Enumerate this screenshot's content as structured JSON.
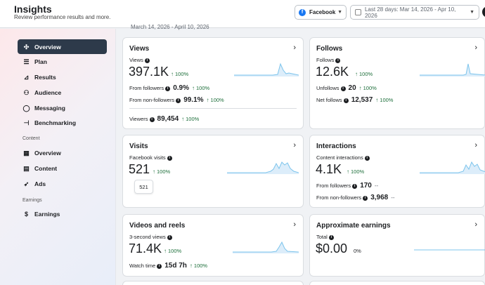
{
  "header": {
    "title": "Insights",
    "subtitle": "Review performance results and more.",
    "platform": "Facebook",
    "date_range": "Last 28 days: Mar 14, 2026 - Apr 10, 2026"
  },
  "partial_date": "March 14, 2026 - April 10, 2026",
  "sidebar": {
    "items": [
      {
        "label": "Overview",
        "icon": "overview-icon",
        "active": true
      },
      {
        "label": "Plan",
        "icon": "list-icon"
      },
      {
        "label": "Results",
        "icon": "results-icon"
      },
      {
        "label": "Audience",
        "icon": "audience-icon"
      },
      {
        "label": "Messaging",
        "icon": "messaging-icon"
      },
      {
        "label": "Benchmarking",
        "icon": "benchmarking-icon"
      }
    ],
    "content_label": "Content",
    "content_items": [
      {
        "label": "Overview",
        "icon": "grid-icon"
      },
      {
        "label": "Content",
        "icon": "table-icon"
      },
      {
        "label": "Ads",
        "icon": "rocket-icon"
      }
    ],
    "earnings_label": "Earnings",
    "earnings_items": [
      {
        "label": "Earnings",
        "icon": "dollar-icon"
      }
    ]
  },
  "cards": {
    "views": {
      "title": "Views",
      "metric_label": "Views",
      "value": "397.1K",
      "change": "100%",
      "followers_label": "From followers",
      "followers_value": "0.9%",
      "followers_change": "100%",
      "nonfollowers_label": "From non-followers",
      "nonfollowers_value": "99.1%",
      "nonfollowers_change": "100%",
      "viewers_label": "Viewers",
      "viewers_value": "89,454",
      "viewers_change": "100%"
    },
    "follows": {
      "title": "Follows",
      "metric_label": "Follows",
      "value": "12.6K",
      "change": "100%",
      "unfollows_label": "Unfollows",
      "unfollows_value": "20",
      "unfollows_change": "100%",
      "net_label": "Net follows",
      "net_value": "12,537",
      "net_change": "100%"
    },
    "visits": {
      "title": "Visits",
      "metric_label": "Facebook visits",
      "value": "521",
      "change": "100%",
      "tooltip": "521"
    },
    "interactions": {
      "title": "Interactions",
      "metric_label": "Content interactions",
      "value": "4.1K",
      "change": "100%",
      "followers_label": "From followers",
      "followers_value": "170",
      "followers_change": "--",
      "nonfollowers_label": "From non-followers",
      "nonfollowers_value": "3,968",
      "nonfollowers_change": "--"
    },
    "videos": {
      "title": "Videos and reels",
      "metric_label": "3-second views",
      "value": "71.4K",
      "change": "100%",
      "watch_label": "Watch time",
      "watch_value": "15d 7h",
      "watch_change": "100%"
    },
    "earnings": {
      "title": "Approximate earnings",
      "metric_label": "Total",
      "value": "$0.00",
      "change": "0%"
    }
  },
  "colors": {
    "accent_green": "#1c6e3a",
    "sparkline": "#7cc4ec",
    "sidebar_active": "#2d3a4a"
  }
}
